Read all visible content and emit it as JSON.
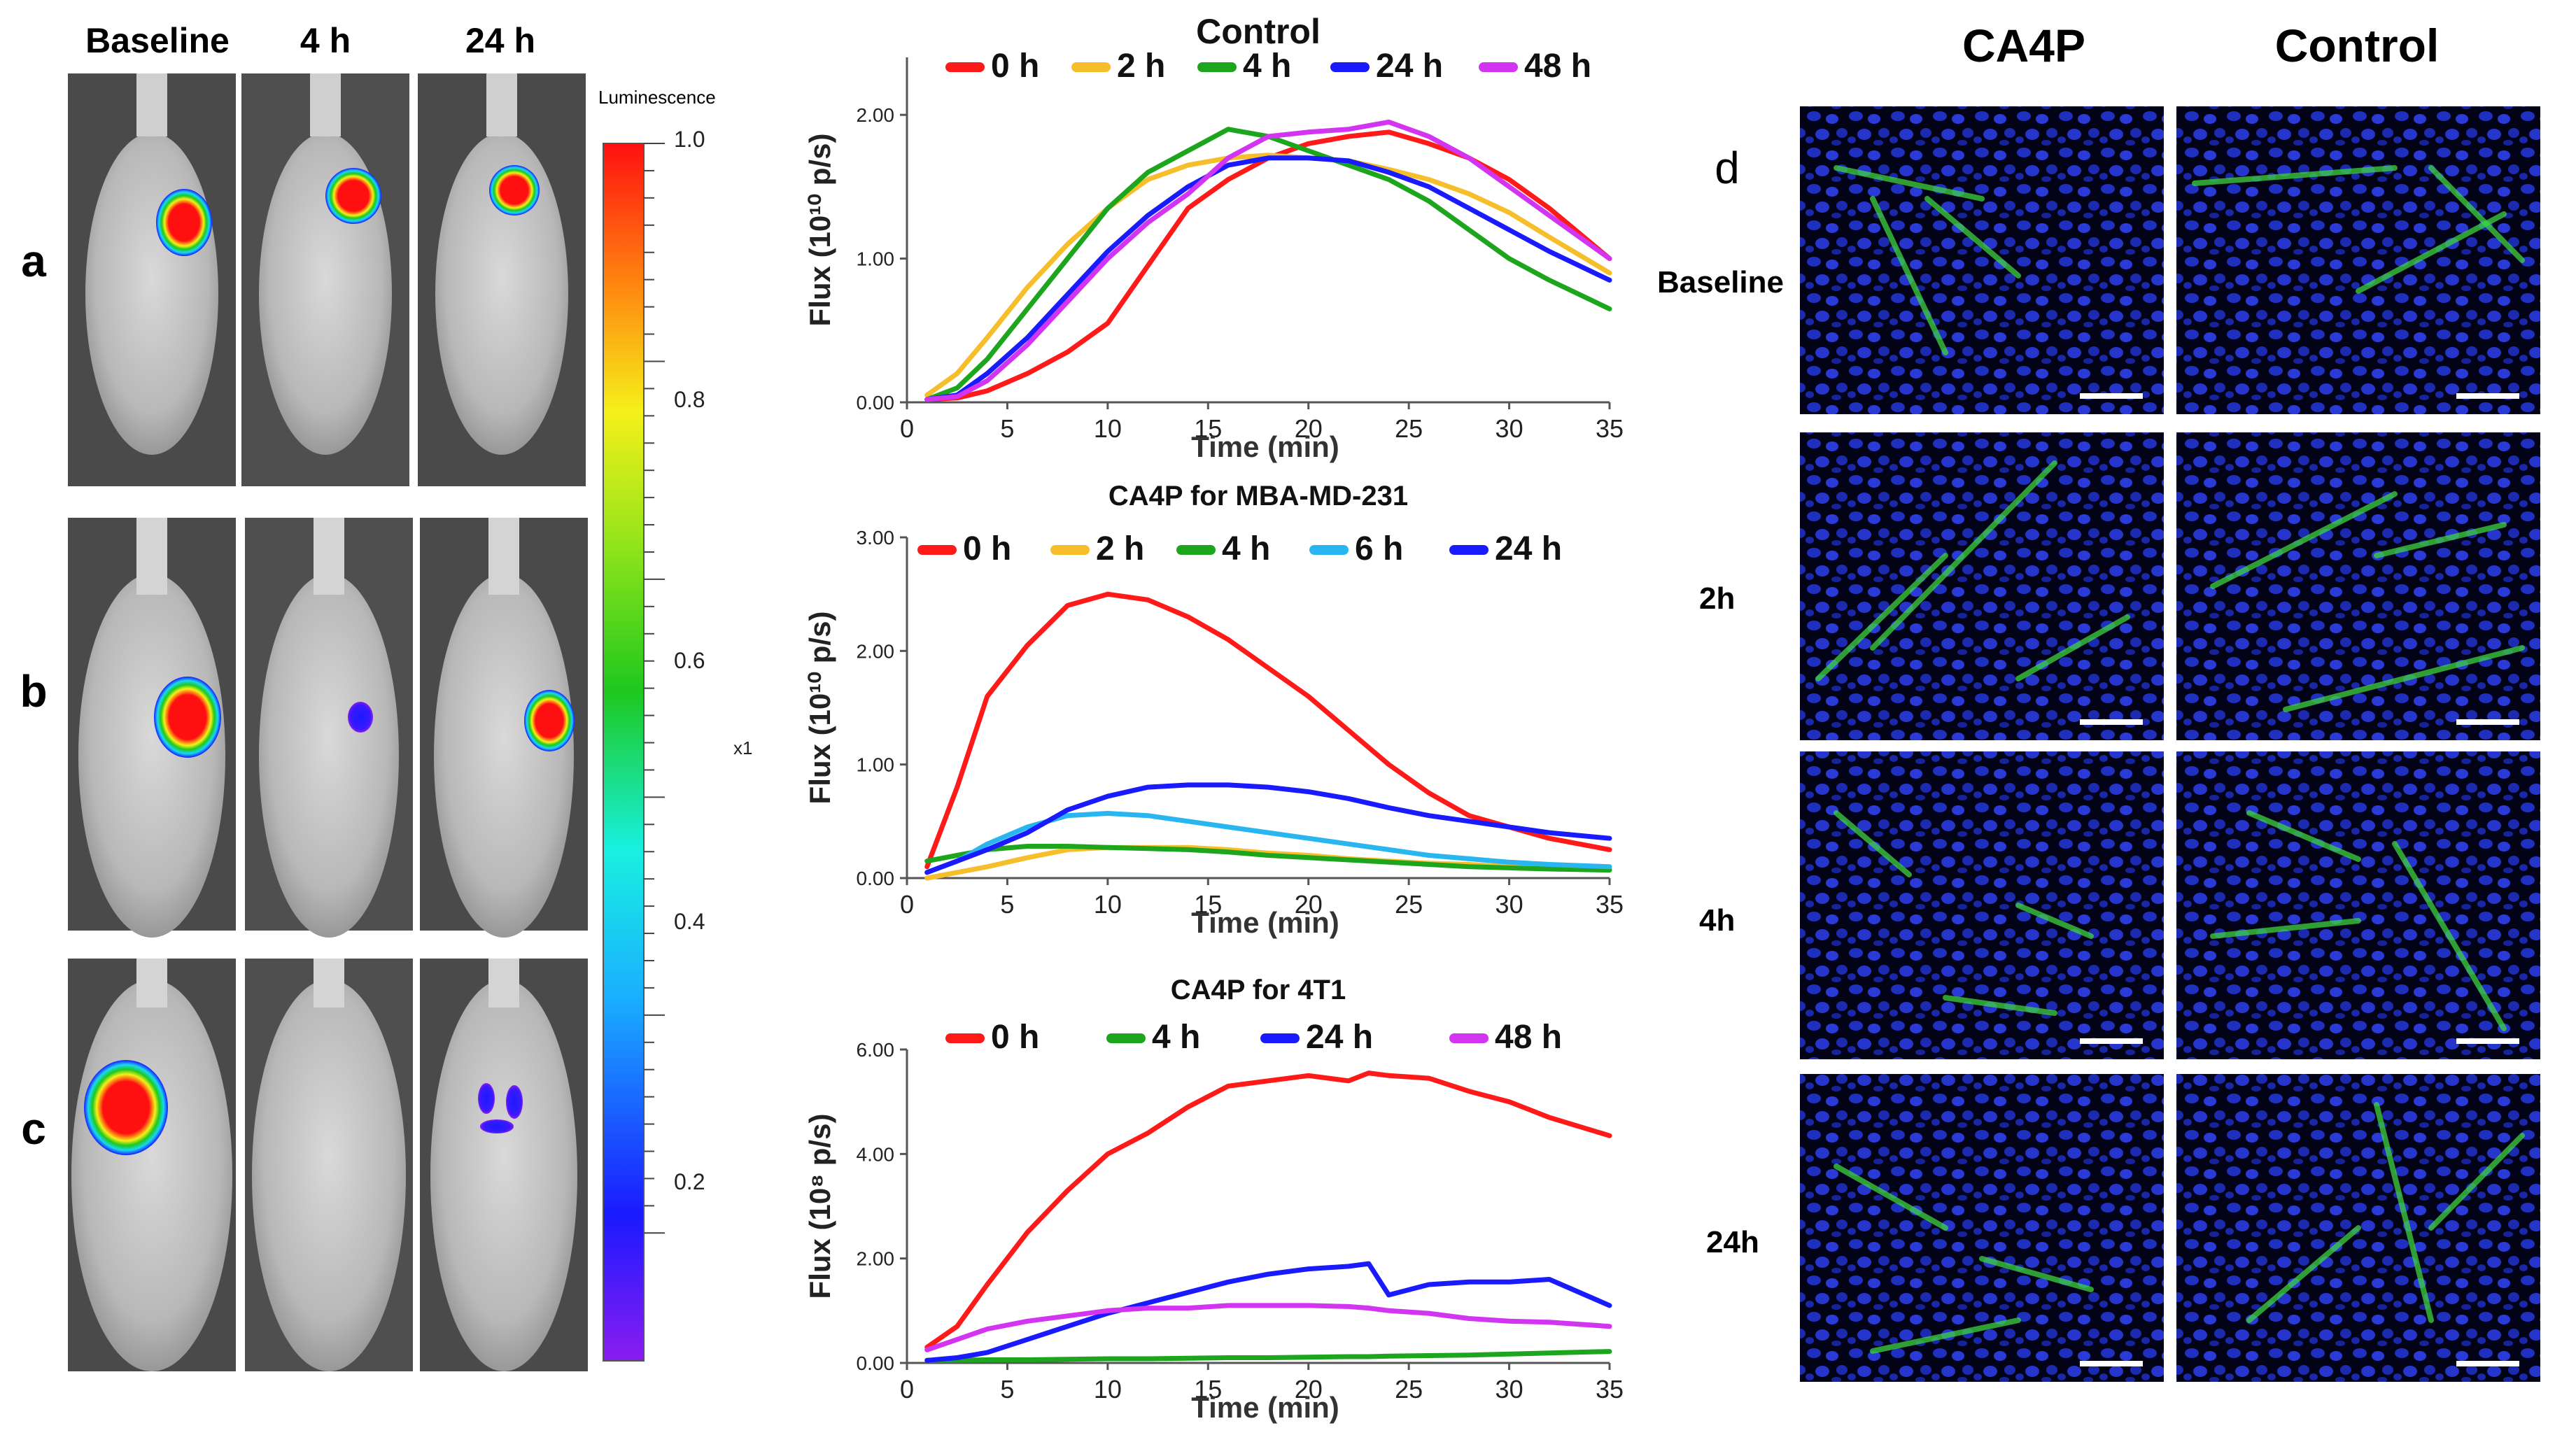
{
  "panel_left": {
    "column_labels": [
      "Baseline",
      "4 h",
      "24 h"
    ],
    "row_labels": [
      "a",
      "b",
      "c"
    ],
    "colorbar": {
      "title": "Luminescence",
      "ticks": [
        "1.0",
        "0.8",
        "0.6",
        "0.4",
        "0.2"
      ],
      "stray_label": "x1"
    }
  },
  "panel_right": {
    "letter": "d",
    "column_labels": [
      "CA4P",
      "Control"
    ],
    "row_labels": [
      "Baseline",
      "2h",
      "4h",
      "24h"
    ]
  },
  "colors": {
    "red": "#ff1a1a",
    "orange": "#f7be2b",
    "green": "#1ea51e",
    "lightblue": "#29b6f0",
    "blue": "#1a1aff",
    "magenta": "#d334f2",
    "axis": "#555555"
  },
  "chart_data": [
    {
      "type": "line",
      "title": "Control",
      "xlabel": "Time (min)",
      "ylabel": "Flux (10¹⁰ p/s)",
      "xlim": [
        0,
        35
      ],
      "ylim": [
        0,
        2.4
      ],
      "xticks": [
        "0",
        "5",
        "10",
        "15",
        "20",
        "25",
        "30",
        "35"
      ],
      "yticks": [
        "0.00",
        "1.00",
        "2.00"
      ],
      "ytick_values": [
        0,
        1,
        2
      ],
      "x": [
        1,
        2.5,
        4,
        6,
        8,
        10,
        12,
        14,
        16,
        18,
        20,
        22,
        24,
        26,
        28,
        30,
        32,
        35
      ],
      "series": [
        {
          "name": "0 h",
          "color_key": "red",
          "values": [
            0.02,
            0.03,
            0.08,
            0.2,
            0.35,
            0.55,
            0.95,
            1.35,
            1.55,
            1.7,
            1.8,
            1.85,
            1.88,
            1.8,
            1.7,
            1.55,
            1.35,
            1.0
          ]
        },
        {
          "name": "2 h",
          "color_key": "orange",
          "values": [
            0.05,
            0.2,
            0.45,
            0.8,
            1.1,
            1.35,
            1.55,
            1.65,
            1.7,
            1.72,
            1.7,
            1.68,
            1.62,
            1.55,
            1.45,
            1.32,
            1.15,
            0.9
          ]
        },
        {
          "name": "4 h",
          "color_key": "green",
          "values": [
            0.02,
            0.1,
            0.3,
            0.65,
            1.0,
            1.35,
            1.6,
            1.75,
            1.9,
            1.85,
            1.75,
            1.65,
            1.55,
            1.4,
            1.2,
            1.0,
            0.85,
            0.65
          ]
        },
        {
          "name": "24 h",
          "color_key": "blue",
          "values": [
            0.02,
            0.05,
            0.2,
            0.45,
            0.75,
            1.05,
            1.3,
            1.5,
            1.65,
            1.7,
            1.7,
            1.68,
            1.6,
            1.5,
            1.35,
            1.2,
            1.05,
            0.85
          ]
        },
        {
          "name": "48 h",
          "color_key": "magenta",
          "values": [
            0.02,
            0.04,
            0.15,
            0.4,
            0.7,
            1.0,
            1.25,
            1.45,
            1.7,
            1.85,
            1.88,
            1.9,
            1.95,
            1.85,
            1.7,
            1.5,
            1.3,
            1.0
          ]
        }
      ]
    },
    {
      "type": "line",
      "title": "CA4P for MBA-MD-231",
      "xlabel": "Time (min)",
      "ylabel": "Flux (10¹⁰ p/s)",
      "xlim": [
        0,
        35
      ],
      "ylim": [
        0,
        3.0
      ],
      "xticks": [
        "0",
        "5",
        "10",
        "15",
        "20",
        "25",
        "30",
        "35"
      ],
      "yticks": [
        "0.00",
        "1.00",
        "2.00",
        "3.00"
      ],
      "ytick_values": [
        0,
        1,
        2,
        3
      ],
      "x": [
        1,
        2.5,
        4,
        6,
        8,
        10,
        12,
        14,
        16,
        18,
        20,
        22,
        24,
        26,
        28,
        30,
        32,
        35
      ],
      "series": [
        {
          "name": "0 h",
          "color_key": "red",
          "values": [
            0.1,
            0.8,
            1.6,
            2.05,
            2.4,
            2.5,
            2.45,
            2.3,
            2.1,
            1.85,
            1.6,
            1.3,
            1.0,
            0.75,
            0.55,
            0.45,
            0.35,
            0.25
          ]
        },
        {
          "name": "2 h",
          "color_key": "orange",
          "values": [
            0.0,
            0.05,
            0.1,
            0.18,
            0.25,
            0.27,
            0.27,
            0.27,
            0.25,
            0.22,
            0.2,
            0.17,
            0.15,
            0.13,
            0.12,
            0.1,
            0.09,
            0.08
          ]
        },
        {
          "name": "4 h",
          "color_key": "green",
          "values": [
            0.15,
            0.2,
            0.25,
            0.28,
            0.28,
            0.27,
            0.26,
            0.25,
            0.23,
            0.2,
            0.18,
            0.16,
            0.14,
            0.12,
            0.1,
            0.09,
            0.08,
            0.07
          ]
        },
        {
          "name": "6 h",
          "color_key": "lightblue",
          "values": [
            0.05,
            0.15,
            0.3,
            0.45,
            0.55,
            0.57,
            0.55,
            0.5,
            0.45,
            0.4,
            0.35,
            0.3,
            0.25,
            0.2,
            0.17,
            0.14,
            0.12,
            0.1
          ]
        },
        {
          "name": "24 h",
          "color_key": "blue",
          "values": [
            0.05,
            0.15,
            0.25,
            0.4,
            0.6,
            0.72,
            0.8,
            0.82,
            0.82,
            0.8,
            0.76,
            0.7,
            0.62,
            0.55,
            0.5,
            0.45,
            0.4,
            0.35
          ]
        }
      ]
    },
    {
      "type": "line",
      "title": "CA4P for 4T1",
      "xlabel": "Time (min)",
      "ylabel": "Flux (10⁸ p/s)",
      "xlim": [
        0,
        35
      ],
      "ylim": [
        0,
        6.0
      ],
      "xticks": [
        "0",
        "5",
        "10",
        "15",
        "20",
        "25",
        "30",
        "35"
      ],
      "yticks": [
        "0.00",
        "2.00",
        "4.00",
        "6.00"
      ],
      "ytick_values": [
        0,
        2,
        4,
        6
      ],
      "x": [
        1,
        2.5,
        4,
        6,
        8,
        10,
        12,
        14,
        16,
        18,
        20,
        22,
        23,
        24,
        26,
        28,
        30,
        32,
        35
      ],
      "series": [
        {
          "name": "0 h",
          "color_key": "red",
          "values": [
            0.3,
            0.7,
            1.5,
            2.5,
            3.3,
            4.0,
            4.4,
            4.9,
            5.3,
            5.4,
            5.5,
            5.4,
            5.55,
            5.5,
            5.45,
            5.2,
            5.0,
            4.7,
            4.35
          ]
        },
        {
          "name": "4 h",
          "color_key": "green",
          "values": [
            0.05,
            0.05,
            0.06,
            0.06,
            0.07,
            0.08,
            0.08,
            0.09,
            0.1,
            0.1,
            0.11,
            0.12,
            0.12,
            0.13,
            0.14,
            0.15,
            0.17,
            0.19,
            0.22
          ]
        },
        {
          "name": "24 h",
          "color_key": "blue",
          "values": [
            0.05,
            0.1,
            0.2,
            0.45,
            0.7,
            0.95,
            1.15,
            1.35,
            1.55,
            1.7,
            1.8,
            1.85,
            1.9,
            1.3,
            1.5,
            1.55,
            1.55,
            1.6,
            1.1
          ]
        },
        {
          "name": "48 h",
          "color_key": "magenta",
          "values": [
            0.25,
            0.45,
            0.65,
            0.8,
            0.9,
            1.0,
            1.05,
            1.05,
            1.1,
            1.1,
            1.1,
            1.08,
            1.05,
            1.0,
            0.95,
            0.85,
            0.8,
            0.78,
            0.7
          ]
        }
      ]
    }
  ]
}
